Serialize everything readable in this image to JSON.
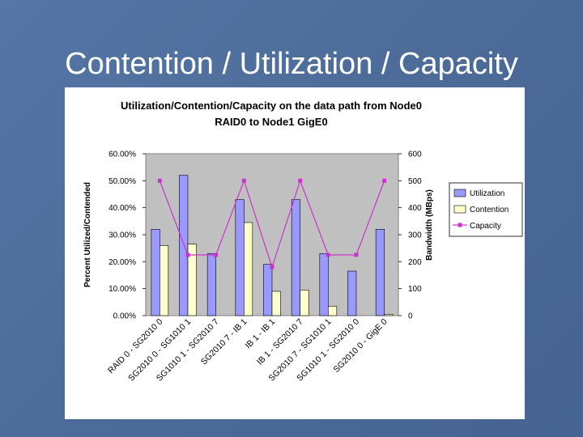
{
  "slide": {
    "title": "Contention / Utilization / Capacity"
  },
  "chart_data": {
    "type": "bar",
    "title_lines": [
      "Utilization/Contention/Capacity on the data path from Node0",
      "RAID0 to Node1 GigE0"
    ],
    "ylabel": "Percent Utilized/Contended",
    "y2label": "Bandwidth (MBps)",
    "ylim": [
      0,
      0.6
    ],
    "y2lim": [
      0,
      600
    ],
    "y_ticks": [
      "0.00%",
      "10.00%",
      "20.00%",
      "30.00%",
      "40.00%",
      "50.00%",
      "60.00%"
    ],
    "y2_ticks": [
      "0",
      "100",
      "200",
      "300",
      "400",
      "500",
      "600"
    ],
    "categories": [
      "RAID 0 - SG2010 0",
      "SG2010 0 - SG1010 1",
      "SG1010 1 - SG2010 7",
      "SG2010 7 - IB 1",
      "IB 1 - IB 1",
      "IB 1 - SG2010 7",
      "SG2010 7 - SG1010 1",
      "SG1010 1 - SG2010 0",
      "SG2010 0 - GigE 0"
    ],
    "series": [
      {
        "name": "Utilization",
        "axis": "left",
        "kind": "bar",
        "color": "#9999ff",
        "values": [
          0.32,
          0.52,
          0.23,
          0.43,
          0.19,
          0.43,
          0.23,
          0.165,
          0.32
        ]
      },
      {
        "name": "Contention",
        "axis": "left",
        "kind": "bar",
        "color": "#ffffcc",
        "values": [
          0.26,
          0.265,
          0.0,
          0.345,
          0.09,
          0.095,
          0.035,
          0.0,
          0.005
        ]
      },
      {
        "name": "Capacity",
        "axis": "right",
        "kind": "line",
        "color": "#cc33cc",
        "values": [
          500,
          225,
          225,
          500,
          180,
          500,
          225,
          225,
          500
        ]
      }
    ],
    "plot_background": "#c0c0c0",
    "legend_placement": "right",
    "grid": false
  }
}
